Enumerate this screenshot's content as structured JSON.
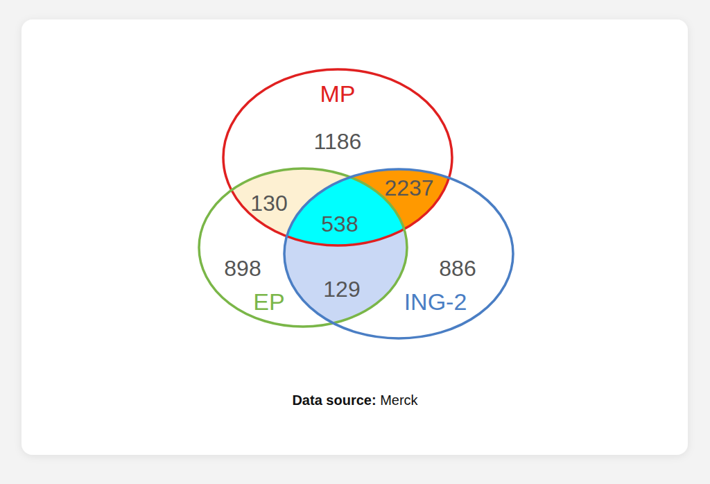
{
  "chart_data": {
    "type": "venn",
    "sets": [
      {
        "name": "MP",
        "color": "#e02020"
      },
      {
        "name": "EP",
        "color": "#7ab648"
      },
      {
        "name": "ING-2",
        "color": "#4a7ec4"
      }
    ],
    "regions": [
      {
        "sets": [
          "MP"
        ],
        "value": 1186
      },
      {
        "sets": [
          "EP"
        ],
        "value": 898
      },
      {
        "sets": [
          "ING-2"
        ],
        "value": 886
      },
      {
        "sets": [
          "MP",
          "EP"
        ],
        "value": 130,
        "color": "#fdf0d2"
      },
      {
        "sets": [
          "MP",
          "ING-2"
        ],
        "value": 2237,
        "color": "#ff9900"
      },
      {
        "sets": [
          "EP",
          "ING-2"
        ],
        "value": 129,
        "color": "#c9d8f5"
      },
      {
        "sets": [
          "MP",
          "EP",
          "ING-2"
        ],
        "value": 538,
        "color": "#00ffff"
      }
    ],
    "caption": {
      "label": "Data source:",
      "text": "Merck"
    }
  }
}
